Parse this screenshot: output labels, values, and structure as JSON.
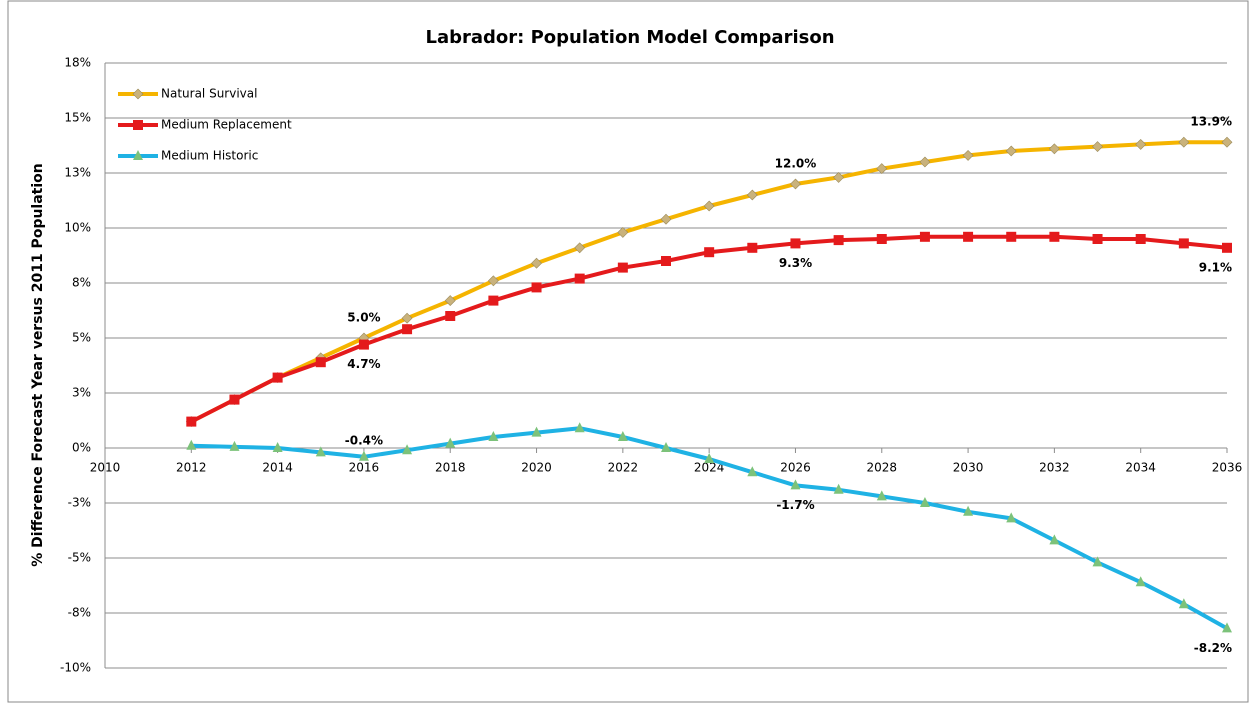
{
  "chart_data": {
    "type": "line",
    "title": "Labrador: Population Model Comparison",
    "y_label": "% Difference Forecast Year versus 2011 Population",
    "x": [
      2012,
      2013,
      2014,
      2015,
      2016,
      2017,
      2018,
      2019,
      2020,
      2021,
      2022,
      2023,
      2024,
      2025,
      2026,
      2027,
      2028,
      2029,
      2030,
      2031,
      2032,
      2033,
      2034,
      2035,
      2036
    ],
    "xlim": [
      2010,
      2036
    ],
    "xticks": [
      2010,
      2012,
      2014,
      2016,
      2018,
      2020,
      2022,
      2024,
      2026,
      2028,
      2030,
      2032,
      2034,
      2036
    ],
    "ylim": [
      -10,
      17.5
    ],
    "yticks": [
      {
        "value": -10,
        "label": "-10%"
      },
      {
        "value": -7.5,
        "label": "-8%"
      },
      {
        "value": -5,
        "label": "-5%"
      },
      {
        "value": -2.5,
        "label": "-3%"
      },
      {
        "value": 0,
        "label": "0%"
      },
      {
        "value": 2.5,
        "label": "3%"
      },
      {
        "value": 5,
        "label": "5%"
      },
      {
        "value": 7.5,
        "label": "8%"
      },
      {
        "value": 10,
        "label": "10%"
      },
      {
        "value": 12.5,
        "label": "13%"
      },
      {
        "value": 15,
        "label": "15%"
      },
      {
        "value": 17.5,
        "label": "18%"
      }
    ],
    "grid": true,
    "legend": "top-left",
    "series": [
      {
        "name": "Natural Survival",
        "color": "#f5b400",
        "marker": "diamond",
        "marker_color": "#c9b27c",
        "values": [
          1.2,
          2.2,
          3.2,
          4.1,
          5.0,
          5.9,
          6.7,
          7.6,
          8.4,
          9.1,
          9.8,
          10.4,
          11.0,
          11.5,
          12.0,
          12.3,
          12.7,
          13.0,
          13.3,
          13.5,
          13.6,
          13.7,
          13.8,
          13.9,
          13.9
        ],
        "value_labels": [
          null,
          null,
          null,
          null,
          "5.0%",
          null,
          null,
          null,
          null,
          null,
          null,
          null,
          null,
          null,
          "12.0%",
          null,
          null,
          null,
          null,
          null,
          null,
          null,
          null,
          null,
          "13.9%"
        ]
      },
      {
        "name": "Medium Replacement",
        "color": "#e41a1c",
        "marker": "square",
        "marker_color": "#e41a1c",
        "values": [
          1.2,
          2.2,
          3.2,
          3.9,
          4.7,
          5.4,
          6.0,
          6.7,
          7.3,
          7.7,
          8.2,
          8.5,
          8.9,
          9.1,
          9.3,
          9.45,
          9.5,
          9.6,
          9.6,
          9.6,
          9.6,
          9.5,
          9.5,
          9.3,
          9.1
        ],
        "value_labels": [
          null,
          null,
          null,
          null,
          "4.7%",
          null,
          null,
          null,
          null,
          null,
          null,
          null,
          null,
          null,
          "9.3%",
          null,
          null,
          null,
          null,
          null,
          null,
          null,
          null,
          null,
          "9.1%"
        ]
      },
      {
        "name": "Medium Historic",
        "color": "#1fb2e4",
        "marker": "triangle",
        "marker_color": "#7cc27a",
        "values": [
          0.1,
          0.05,
          0.0,
          -0.2,
          -0.4,
          -0.1,
          0.2,
          0.5,
          0.7,
          0.9,
          0.5,
          0.0,
          -0.5,
          -1.1,
          -1.7,
          -1.9,
          -2.2,
          -2.5,
          -2.9,
          -3.2,
          -4.2,
          -5.2,
          -6.1,
          -7.1,
          -8.2
        ],
        "value_labels": [
          null,
          null,
          null,
          null,
          "-0.4%",
          null,
          null,
          null,
          null,
          null,
          null,
          null,
          null,
          null,
          "-1.7%",
          null,
          null,
          null,
          null,
          null,
          null,
          null,
          null,
          null,
          "-8.2%"
        ]
      }
    ]
  }
}
